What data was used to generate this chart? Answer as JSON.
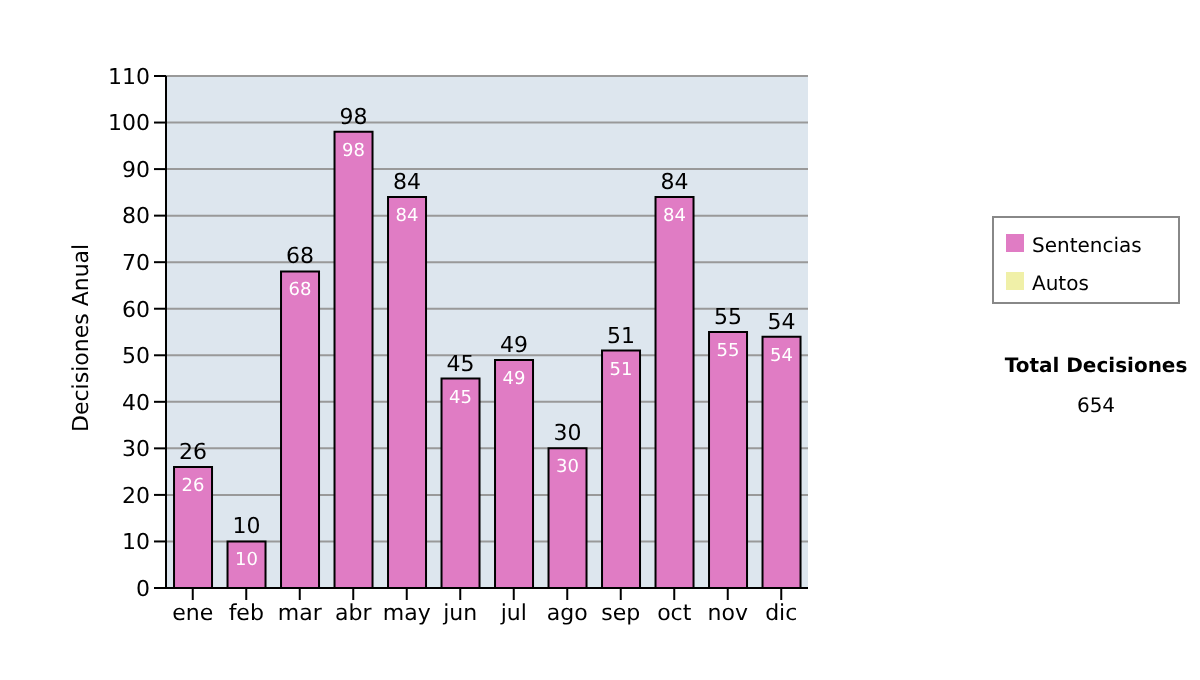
{
  "chart_data": {
    "type": "bar",
    "ylabel": "Decisiones Anual",
    "categories": [
      "ene",
      "feb",
      "mar",
      "abr",
      "may",
      "jun",
      "jul",
      "ago",
      "sep",
      "oct",
      "nov",
      "dic"
    ],
    "series": [
      {
        "name": "Sentencias",
        "color": "#e07cc4",
        "values": [
          26,
          10,
          68,
          98,
          84,
          45,
          49,
          30,
          51,
          84,
          55,
          54
        ],
        "value_labels": [
          "26",
          "10",
          "68",
          "98",
          "84",
          "45",
          "49",
          "30",
          "51",
          "84",
          "55",
          "54"
        ]
      },
      {
        "name": "Autos",
        "color": "#f0f0a8",
        "values": [
          0,
          0,
          0,
          0,
          0,
          0,
          0,
          0,
          0,
          0,
          0,
          0
        ],
        "value_labels": [
          null,
          null,
          null,
          null,
          null,
          null,
          null,
          null,
          null,
          null,
          null,
          null
        ]
      }
    ],
    "stacked": true,
    "totals": [
      "26",
      "10",
      "68",
      "98",
      "84",
      "45",
      "49",
      "30",
      "51",
      "84",
      "55",
      "54"
    ],
    "ylim": [
      0,
      110
    ],
    "yticks": [
      0,
      10,
      20,
      30,
      40,
      50,
      60,
      70,
      80,
      90,
      100,
      110
    ],
    "grid": "y",
    "legend": "right",
    "annotations": [
      "Total Decisiones",
      "654"
    ]
  }
}
